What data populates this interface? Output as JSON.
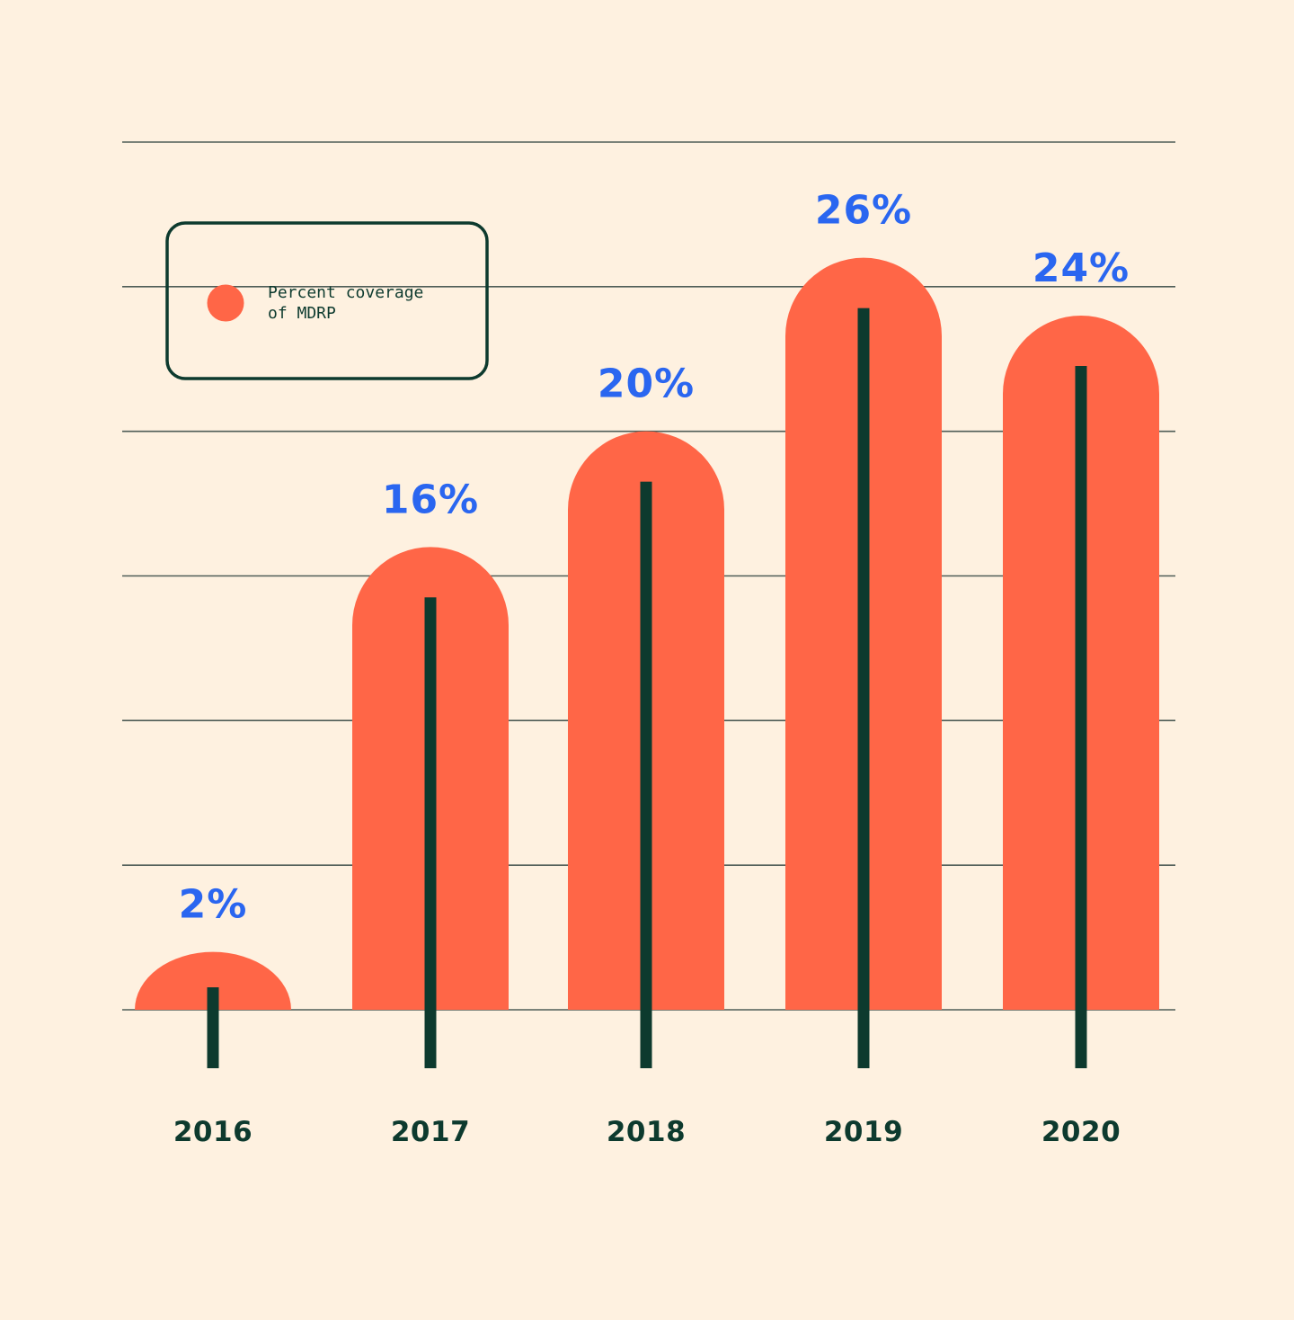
{
  "colors": {
    "background": "#fef1e0",
    "bar": "#ff6647",
    "stem": "#0d3a2e",
    "value_label": "#2a66f0",
    "axis_text": "#0d3a2e",
    "gridline": "#4f5d57",
    "legend_border": "#0d3a2e"
  },
  "legend": {
    "label_line1": "Percent coverage",
    "label_line2": "of MDRP",
    "marker": "circle"
  },
  "chart_data": {
    "type": "bar",
    "bar_shape": "rounded-top with center stem",
    "categories": [
      "2016",
      "2017",
      "2018",
      "2019",
      "2020"
    ],
    "series": [
      {
        "name": "Percent coverage of MDRP",
        "values": [
          2,
          16,
          20,
          26,
          24
        ],
        "labels": [
          "2%",
          "16%",
          "20%",
          "26%",
          "24%"
        ]
      }
    ],
    "ylim": [
      0,
      30
    ],
    "grid": true,
    "legend_position": "top-left",
    "title": "",
    "xlabel": "",
    "ylabel": ""
  }
}
